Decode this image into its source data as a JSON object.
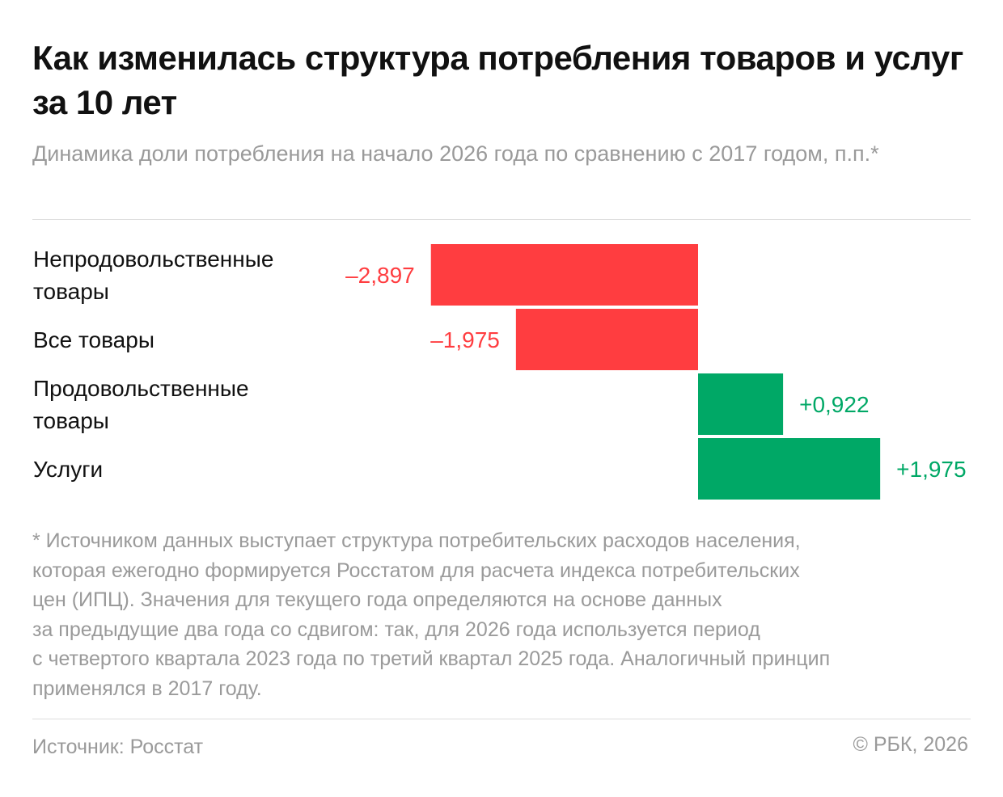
{
  "title": "Как изменилась структура потребления товаров и услуг за 10 лет",
  "subtitle": "Динамика доли потребления на начало 2026 года по сравнению с 2017 годом, п.п.*",
  "chart_data": {
    "type": "bar",
    "orientation": "horizontal",
    "unit": "п.п.",
    "categories": [
      [
        "Непродовольственные",
        "товары"
      ],
      [
        "Все товары"
      ],
      [
        "Продовольственные",
        "товары"
      ],
      [
        "Услуги"
      ]
    ],
    "values": [
      -2.897,
      -1.975,
      0.922,
      1.975
    ],
    "value_labels": [
      "–2,897",
      "–1,975",
      "+0,922",
      "+1,975"
    ],
    "colors": {
      "negative": "#ff3d40",
      "positive": "#00a866"
    },
    "xlim": [
      -3.0,
      2.0
    ],
    "axes": false,
    "grid": false
  },
  "footnote": [
    "* Источником данных выступает структура потребительских расходов населения,",
    "которая ежегодно формируется Росстатом для расчета индекса потребительских",
    "цен (ИПЦ). Значения для текущего года определяются на основе данных",
    "за предыдущие два года со сдвигом: так, для 2026 года используется период",
    "с четвертого квартала 2023 года по третий квартал 2025 года. Аналогичный принцип",
    "применялся в 2017 году."
  ],
  "source": "Источник: Росстат",
  "copyright": "© РБК, 2026"
}
